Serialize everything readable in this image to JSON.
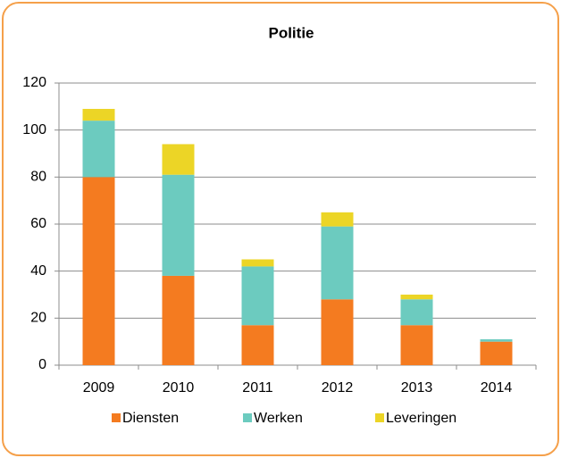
{
  "chart_data": {
    "type": "stacked_bar",
    "title": "Politie",
    "categories": [
      "2009",
      "2010",
      "2011",
      "2012",
      "2013",
      "2014"
    ],
    "series": [
      {
        "name": "Diensten",
        "color": "#f47b20",
        "values": [
          80,
          38,
          17,
          28,
          17,
          10
        ]
      },
      {
        "name": "Werken",
        "color": "#6ccbbf",
        "values": [
          24,
          43,
          25,
          31,
          11,
          1
        ]
      },
      {
        "name": "Leveringen",
        "color": "#ecd526",
        "values": [
          5,
          13,
          3,
          6,
          2,
          0
        ]
      }
    ],
    "ylim": [
      0,
      120
    ],
    "yticks": [
      0,
      20,
      40,
      60,
      80,
      100,
      120
    ],
    "grid": true,
    "legend": "bottom"
  }
}
